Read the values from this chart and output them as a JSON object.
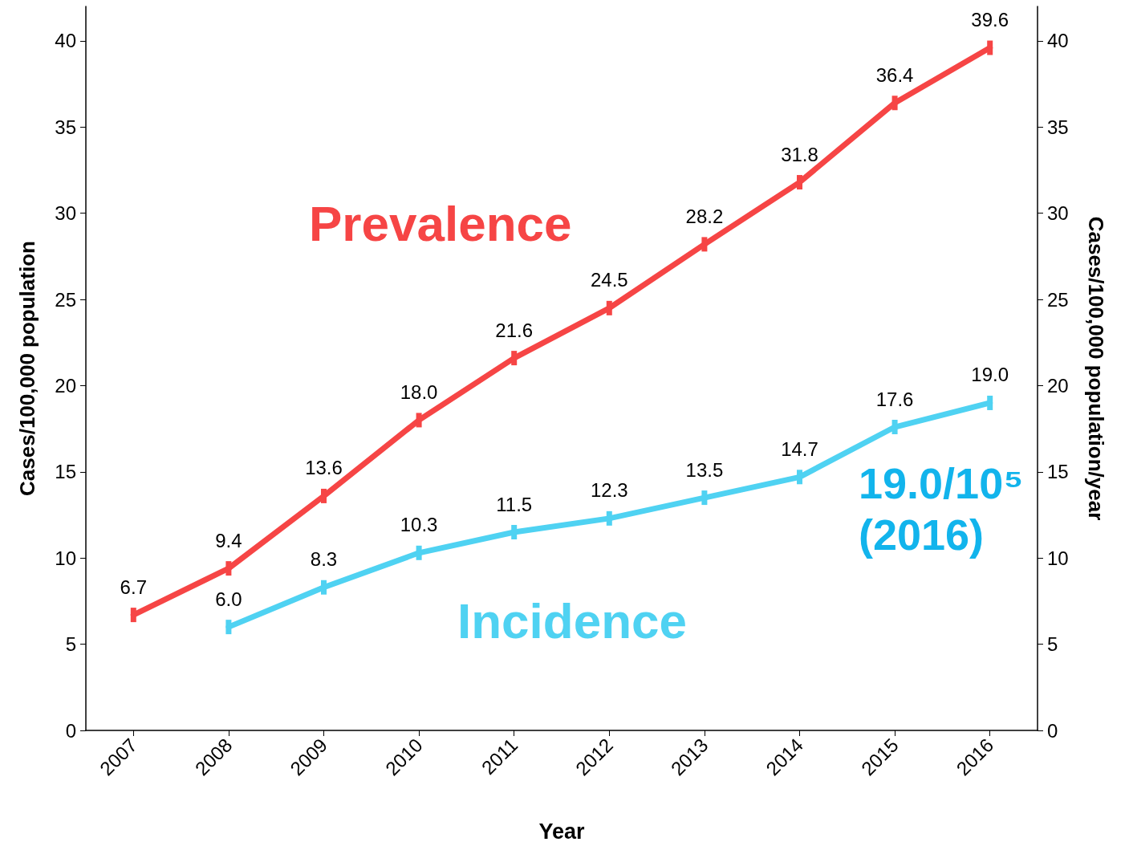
{
  "chart_data": {
    "type": "line",
    "xlabel": "Year",
    "ylabel": "Cases/100,000 population",
    "y2label": "Cases/100,000 population/year",
    "categories": [
      "2007",
      "2008",
      "2009",
      "2010",
      "2011",
      "2012",
      "2013",
      "2014",
      "2015",
      "2016"
    ],
    "series": [
      {
        "name": "Prevalence",
        "color": "#f64545",
        "values": [
          6.7,
          9.4,
          13.6,
          18.0,
          21.6,
          24.5,
          28.2,
          31.8,
          36.4,
          39.6
        ],
        "value_labels": [
          "6.7",
          "9.4",
          "13.6",
          "18.0",
          "21.6",
          "24.5",
          "28.2",
          "31.8",
          "36.4",
          "39.6"
        ]
      },
      {
        "name": "Incidence",
        "color": "#4fd2f2",
        "values": [
          null,
          6.0,
          8.3,
          10.3,
          11.5,
          12.3,
          13.5,
          14.7,
          17.6,
          19.0
        ],
        "value_labels": [
          null,
          "6.0",
          "8.3",
          "10.3",
          "11.5",
          "12.3",
          "13.5",
          "14.7",
          "17.6",
          "19.0"
        ]
      }
    ],
    "ylim": [
      0,
      42
    ],
    "yticks": [
      0,
      5,
      10,
      15,
      20,
      25,
      30,
      35,
      40
    ],
    "y2lim": [
      0,
      42
    ],
    "y2ticks": [
      0,
      5,
      10,
      15,
      20,
      25,
      30,
      35,
      40
    ],
    "annotations": [
      "19.0/10⁵\n(2016)"
    ],
    "grid": false,
    "legend": false,
    "marker": "square",
    "line_style": "solid"
  }
}
